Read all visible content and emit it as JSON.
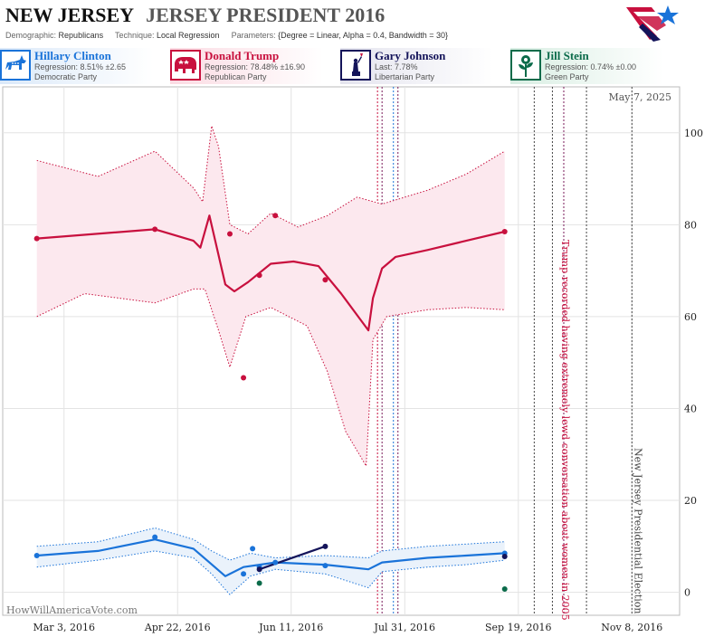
{
  "header": {
    "state": "NEW JERSEY",
    "race": "JERSEY PRESIDENT 2016",
    "demographic_label": "Demographic:",
    "demographic": "Republicans",
    "technique_label": "Technique:",
    "technique": "Local Regression",
    "parameters_label": "Parameters:",
    "parameters": "{Degree = Linear, Alpha = 0.4, Bandwidth = 30}"
  },
  "candidates": [
    {
      "name": "Hillary Clinton",
      "stat": "Regression: 8.51% ±2.65",
      "party": "Democratic Party",
      "color": "#1a73d9",
      "icon": "donkey-icon"
    },
    {
      "name": "Donald Trump",
      "stat": "Regression: 78.48% ±16.90",
      "party": "Republican Party",
      "color": "#c8103e",
      "icon": "elephant-icon"
    },
    {
      "name": "Gary Johnson",
      "stat": "Last: 7.78%",
      "party": "Libertarian Party",
      "color": "#14145a",
      "icon": "liberty-statue-icon"
    },
    {
      "name": "Jill Stein",
      "stat": "Regression: 0.74% ±0.00",
      "party": "Green Party",
      "color": "#0b6b4a",
      "icon": "rose-icon"
    }
  ],
  "chart_data": {
    "type": "line",
    "date_label": "May 7, 2025",
    "watermark": "HowWillAmericaVote.com",
    "x_ticks": [
      "Mar 3, 2016",
      "Apr 22, 2016",
      "Jun 11, 2016",
      "Jul 31, 2016",
      "Sep 19, 2016",
      "Nov 8, 2016"
    ],
    "y_ticks": [
      0,
      20,
      40,
      60,
      80,
      100
    ],
    "ylim": [
      -5,
      110
    ],
    "xlim": [
      "2016-02-05",
      "2016-11-29"
    ],
    "annotations": [
      {
        "date": "2016-10-07",
        "text": "Trump recorded having extremely lewd conversation about women in 2005",
        "color": "#c8103e"
      },
      {
        "date": "2016-11-08",
        "text": "New Jersey Presidential Election",
        "color": "#444444"
      }
    ],
    "event_lines": [
      {
        "date": "2016-07-19",
        "color": "#c8103e"
      },
      {
        "date": "2016-07-21",
        "color": "#7a1a5a"
      },
      {
        "date": "2016-07-26",
        "color": "#1a73d9"
      },
      {
        "date": "2016-07-28",
        "color": "#7a1a5a"
      },
      {
        "date": "2016-09-26",
        "color": "#444444"
      },
      {
        "date": "2016-10-04",
        "color": "#444444"
      },
      {
        "date": "2016-10-09",
        "color": "#7a1a5a"
      },
      {
        "date": "2016-10-19",
        "color": "#444444"
      },
      {
        "date": "2016-11-08",
        "color": "#444444"
      }
    ],
    "series": [
      {
        "name": "Donald Trump",
        "color": "#c8103e",
        "band_fill": "#fce8ee",
        "line": [
          [
            "2016-02-20",
            77.0
          ],
          [
            "2016-04-12",
            79.0
          ],
          [
            "2016-04-29",
            76.5
          ],
          [
            "2016-05-02",
            75.0
          ],
          [
            "2016-05-06",
            82.0
          ],
          [
            "2016-05-13",
            67.0
          ],
          [
            "2016-05-17",
            65.5
          ],
          [
            "2016-05-23",
            67.5
          ],
          [
            "2016-06-02",
            71.5
          ],
          [
            "2016-06-12",
            72.0
          ],
          [
            "2016-06-23",
            71.0
          ],
          [
            "2016-07-03",
            65.0
          ],
          [
            "2016-07-12",
            59.0
          ],
          [
            "2016-07-15",
            57.0
          ],
          [
            "2016-07-17",
            64.0
          ],
          [
            "2016-07-21",
            70.5
          ],
          [
            "2016-07-27",
            73.0
          ],
          [
            "2016-08-10",
            74.5
          ],
          [
            "2016-08-27",
            76.5
          ],
          [
            "2016-09-13",
            78.5
          ]
        ],
        "upper": [
          [
            "2016-02-20",
            94.0
          ],
          [
            "2016-03-18",
            90.5
          ],
          [
            "2016-04-12",
            96.0
          ],
          [
            "2016-04-29",
            88.0
          ],
          [
            "2016-05-03",
            85.0
          ],
          [
            "2016-05-07",
            101.5
          ],
          [
            "2016-05-10",
            97.0
          ],
          [
            "2016-05-15",
            80.0
          ],
          [
            "2016-05-23",
            78.0
          ],
          [
            "2016-06-02",
            82.5
          ],
          [
            "2016-06-14",
            79.5
          ],
          [
            "2016-06-27",
            82.0
          ],
          [
            "2016-07-10",
            86.0
          ],
          [
            "2016-07-21",
            84.5
          ],
          [
            "2016-08-10",
            87.5
          ],
          [
            "2016-08-27",
            91.0
          ],
          [
            "2016-09-13",
            96.0
          ]
        ],
        "lower": [
          [
            "2016-02-20",
            60.0
          ],
          [
            "2016-03-12",
            65.0
          ],
          [
            "2016-04-12",
            63.0
          ],
          [
            "2016-04-29",
            66.0
          ],
          [
            "2016-05-04",
            66.0
          ],
          [
            "2016-05-10",
            57.0
          ],
          [
            "2016-05-15",
            49.0
          ],
          [
            "2016-05-22",
            60.0
          ],
          [
            "2016-06-02",
            62.0
          ],
          [
            "2016-06-18",
            58.0
          ],
          [
            "2016-06-27",
            48.0
          ],
          [
            "2016-07-05",
            35.0
          ],
          [
            "2016-07-14",
            27.5
          ],
          [
            "2016-07-17",
            55.0
          ],
          [
            "2016-07-23",
            60.0
          ],
          [
            "2016-08-10",
            61.5
          ],
          [
            "2016-08-27",
            62.0
          ],
          [
            "2016-09-13",
            61.5
          ]
        ],
        "points": [
          [
            "2016-02-20",
            77.0
          ],
          [
            "2016-04-12",
            79.0
          ],
          [
            "2016-05-15",
            78.0
          ],
          [
            "2016-05-21",
            46.7
          ],
          [
            "2016-05-28",
            69.0
          ],
          [
            "2016-06-04",
            82.0
          ],
          [
            "2016-06-26",
            68.0
          ],
          [
            "2016-09-13",
            78.5
          ]
        ]
      },
      {
        "name": "Hillary Clinton",
        "color": "#1a73d9",
        "band_fill": "#eaf2fb",
        "line": [
          [
            "2016-02-20",
            8.0
          ],
          [
            "2016-03-18",
            9.0
          ],
          [
            "2016-04-12",
            11.5
          ],
          [
            "2016-04-29",
            9.5
          ],
          [
            "2016-05-06",
            6.5
          ],
          [
            "2016-05-13",
            3.5
          ],
          [
            "2016-05-21",
            5.5
          ],
          [
            "2016-06-04",
            6.5
          ],
          [
            "2016-06-26",
            6.0
          ],
          [
            "2016-07-15",
            5.0
          ],
          [
            "2016-07-21",
            6.5
          ],
          [
            "2016-08-10",
            7.5
          ],
          [
            "2016-08-27",
            8.0
          ],
          [
            "2016-09-13",
            8.5
          ]
        ],
        "upper": [
          [
            "2016-02-20",
            10.0
          ],
          [
            "2016-03-18",
            11.0
          ],
          [
            "2016-04-12",
            14.0
          ],
          [
            "2016-04-29",
            11.5
          ],
          [
            "2016-05-07",
            9.0
          ],
          [
            "2016-05-15",
            7.0
          ],
          [
            "2016-05-24",
            8.5
          ],
          [
            "2016-06-04",
            7.5
          ],
          [
            "2016-06-26",
            8.0
          ],
          [
            "2016-07-15",
            7.5
          ],
          [
            "2016-07-21",
            9.0
          ],
          [
            "2016-08-10",
            10.0
          ],
          [
            "2016-08-27",
            10.5
          ],
          [
            "2016-09-13",
            11.0
          ]
        ],
        "lower": [
          [
            "2016-02-20",
            5.5
          ],
          [
            "2016-03-18",
            7.0
          ],
          [
            "2016-04-12",
            9.0
          ],
          [
            "2016-04-29",
            7.5
          ],
          [
            "2016-05-07",
            4.0
          ],
          [
            "2016-05-15",
            -0.5
          ],
          [
            "2016-05-24",
            3.5
          ],
          [
            "2016-06-04",
            5.0
          ],
          [
            "2016-06-26",
            4.0
          ],
          [
            "2016-07-15",
            1.0
          ],
          [
            "2016-07-21",
            4.5
          ],
          [
            "2016-08-10",
            5.5
          ],
          [
            "2016-08-27",
            6.0
          ],
          [
            "2016-09-13",
            7.0
          ]
        ],
        "points": [
          [
            "2016-02-20",
            8.0
          ],
          [
            "2016-04-12",
            12.0
          ],
          [
            "2016-05-21",
            4.0
          ],
          [
            "2016-05-25",
            9.5
          ],
          [
            "2016-05-28",
            5.5
          ],
          [
            "2016-06-04",
            6.5
          ],
          [
            "2016-06-26",
            5.8
          ],
          [
            "2016-09-13",
            8.5
          ]
        ]
      },
      {
        "name": "Gary Johnson",
        "color": "#14145a",
        "line": [
          [
            "2016-05-28",
            5.0
          ],
          [
            "2016-06-26",
            10.0
          ]
        ],
        "points": [
          [
            "2016-05-28",
            5.0
          ],
          [
            "2016-06-26",
            10.0
          ],
          [
            "2016-09-13",
            7.8
          ]
        ]
      },
      {
        "name": "Jill Stein",
        "color": "#0b6b4a",
        "line": [],
        "points": [
          [
            "2016-05-28",
            2.0
          ],
          [
            "2016-09-13",
            0.7
          ]
        ]
      }
    ]
  }
}
